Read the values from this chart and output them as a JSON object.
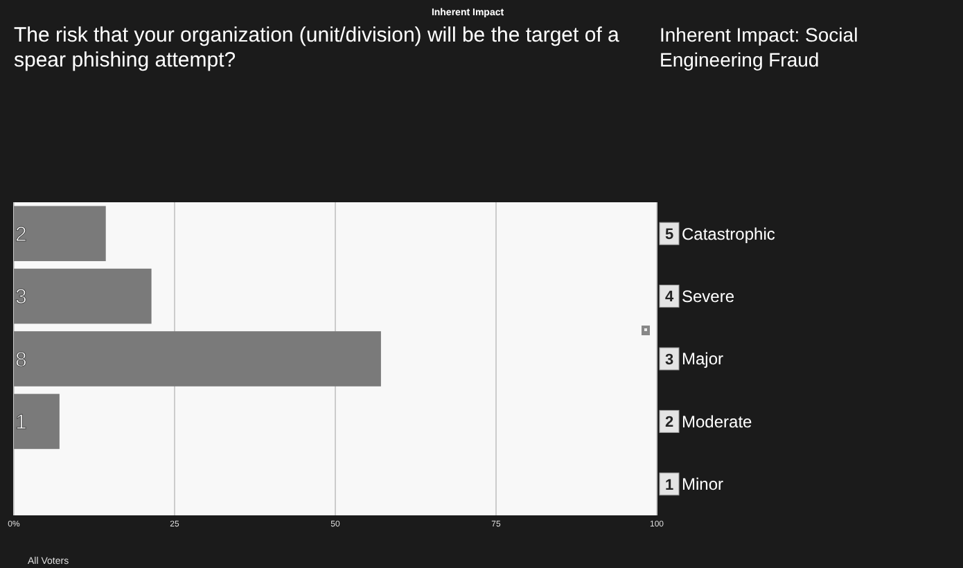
{
  "chart_data": {
    "type": "bar",
    "orientation": "horizontal",
    "title": "Inherent Impact",
    "subtitle": "The risk that your organization (unit/division) will be the target of a spear phishing attempt?",
    "annotations": [
      "Inherent Impact: Social Engineering Fraud",
      "All Voters",
      {
        "text": "2",
        "y": "5 Catastrophic"
      },
      {
        "text": "3",
        "y": "4 Severe"
      },
      {
        "text": "8",
        "y": "3 Major"
      },
      {
        "text": "1",
        "y": "2 Moderate"
      }
    ],
    "categories": [
      "5 Catastrophic",
      "4 Severe",
      "3 Major",
      "2 Moderate",
      "1 Minor"
    ],
    "values": [
      14.3,
      21.4,
      57.1,
      7.1,
      0
    ],
    "color": "#7a7a7a",
    "xlim": [
      0,
      100
    ],
    "xticks": [
      {
        "value": 0,
        "label": "0%"
      },
      25,
      50,
      75,
      100
    ],
    "grid": "x"
  }
}
